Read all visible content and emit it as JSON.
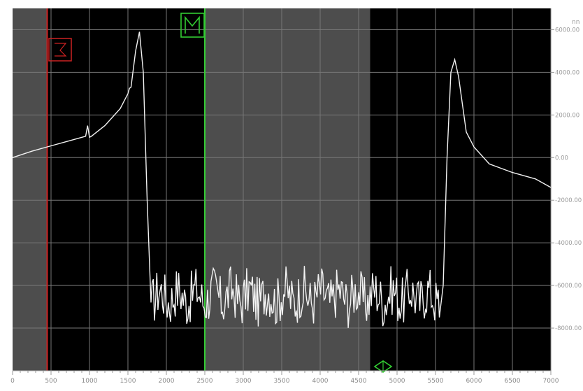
{
  "chart_data": {
    "type": "line",
    "title": "",
    "xlabel": "",
    "ylabel": "",
    "y_unit": "nn",
    "x_unit": "",
    "xlim": [
      0,
      7000
    ],
    "ylim": [
      -10000,
      7000
    ],
    "x_ticks": [
      0,
      500,
      1000,
      1500,
      2000,
      2500,
      3000,
      3500,
      4000,
      4500,
      5000,
      5500,
      6000,
      6500,
      7000
    ],
    "x_tick_labels": [
      "0",
      "500",
      "1000",
      "1500",
      "2000",
      "2500",
      "3000",
      "3500",
      "4000",
      "4500",
      "5000",
      "5500",
      "6000",
      "6500",
      "7000"
    ],
    "y_ticks": [
      6000,
      4000,
      2000,
      0,
      -2000,
      -4000,
      -6000,
      -8000
    ],
    "y_tick_labels": [
      "6000.00",
      "4000.00",
      "2000.00",
      "0.00",
      "-2000.00",
      "-4000.00",
      "-6000.00",
      "-8000.00"
    ],
    "grid": true,
    "series": [
      {
        "name": "",
        "color": "#f2f2f2",
        "x": [
          0,
          250,
          500,
          750,
          950,
          975,
          1000,
          1025,
          1200,
          1400,
          1500,
          1520,
          1540,
          1600,
          1650,
          1700,
          1750,
          1800,
          5550,
          5600,
          5650,
          5700,
          5750,
          5800,
          5850,
          5900,
          6000,
          6200,
          6500,
          6800,
          7000
        ],
        "y": [
          0,
          300,
          550,
          800,
          1000,
          1500,
          950,
          1000,
          1500,
          2300,
          3000,
          3250,
          3300,
          5000,
          5900,
          4000,
          -2000,
          -6800,
          -7500,
          -6000,
          0,
          4000,
          4600,
          3800,
          2500,
          1200,
          500,
          -300,
          -700,
          -1000,
          -1400
        ],
        "noise": {
          "x_from": 1800,
          "x_to": 5550,
          "center": -6500,
          "amplitude": 1200
        }
      }
    ],
    "markers": [
      {
        "type": "cursor-line",
        "x": 450,
        "color": "#cc2222"
      },
      {
        "type": "cursor-line",
        "x": 2500,
        "color": "#33cc33"
      }
    ],
    "shaded_regions": [
      {
        "x_from": 0,
        "x_to": 450,
        "color": "#4d4d4d"
      },
      {
        "x_from": 2500,
        "x_to": 4650,
        "color": "#4d4d4d"
      }
    ],
    "icons": {
      "red_marker": "bracket-marker-icon",
      "green_marker": "m-marker-icon",
      "bottom_marker": "diamond-arrow-icon"
    },
    "background": "#000000",
    "grid_color": "#777777"
  }
}
